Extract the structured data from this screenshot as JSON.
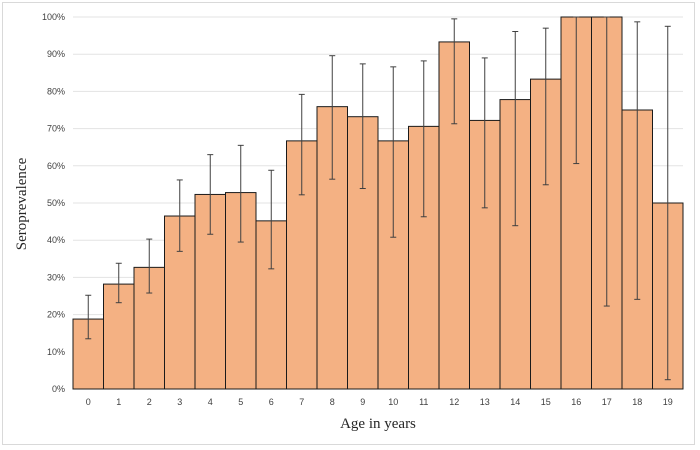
{
  "chart_data": {
    "type": "bar",
    "title": "",
    "xlabel": "Age in years",
    "ylabel": "Seroprevalence",
    "ylim": [
      0,
      100
    ],
    "y_ticks": [
      "0%",
      "10%",
      "20%",
      "30%",
      "40%",
      "50%",
      "60%",
      "70%",
      "80%",
      "90%",
      "100%"
    ],
    "grid": true,
    "colors": {
      "bar_fill": "#f4b183",
      "bar_stroke": "#1a1a1a",
      "error_bar": "#404040"
    },
    "categories": [
      "0",
      "1",
      "2",
      "3",
      "4",
      "5",
      "6",
      "7",
      "8",
      "9",
      "10",
      "11",
      "12",
      "13",
      "14",
      "15",
      "16",
      "17",
      "18",
      "19"
    ],
    "values": [
      18.8,
      28.2,
      32.7,
      46.5,
      52.3,
      52.8,
      45.2,
      66.7,
      75.9,
      73.2,
      66.7,
      70.6,
      93.3,
      72.2,
      77.8,
      83.3,
      100,
      100,
      75.0,
      50.0
    ],
    "error_lower": [
      13.5,
      23.2,
      25.8,
      37.0,
      41.6,
      39.5,
      32.3,
      52.2,
      56.4,
      53.9,
      40.8,
      46.3,
      71.3,
      48.7,
      43.9,
      54.9,
      60.6,
      22.3,
      24.1,
      2.5
    ],
    "error_upper": [
      25.2,
      33.8,
      40.3,
      56.2,
      63.0,
      65.5,
      58.8,
      79.2,
      89.6,
      87.4,
      86.6,
      88.2,
      99.5,
      89.0,
      96.1,
      97.0,
      100,
      100,
      98.7,
      97.5
    ]
  }
}
